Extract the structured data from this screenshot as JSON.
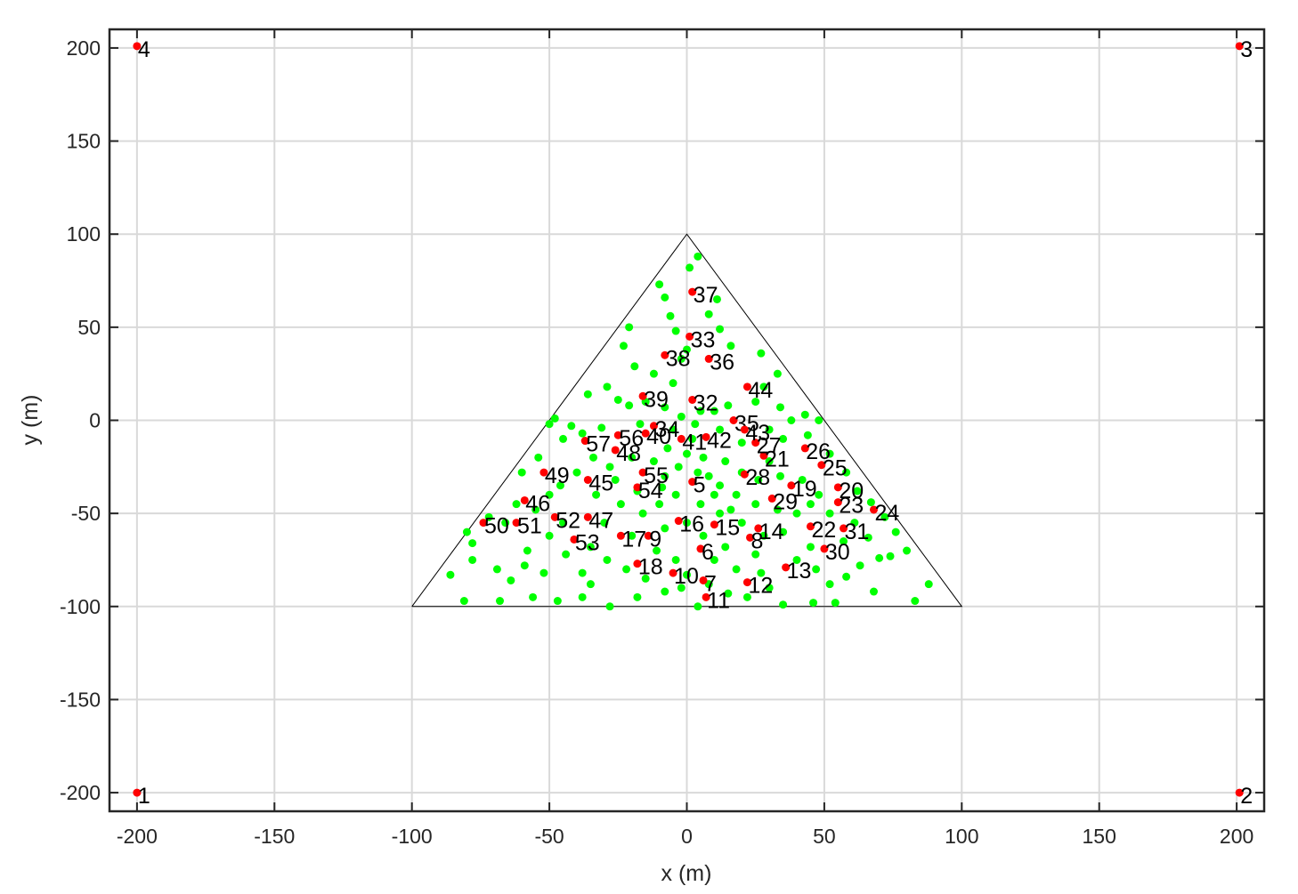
{
  "chart_data": {
    "type": "scatter",
    "xlabel": "x (m)",
    "ylabel": "y (m)",
    "xlim": [
      -210,
      210
    ],
    "ylim": [
      -210,
      210
    ],
    "xticks": [
      -200,
      -150,
      -100,
      -50,
      0,
      50,
      100,
      150,
      200
    ],
    "yticks": [
      -200,
      -150,
      -100,
      -50,
      0,
      50,
      100,
      150,
      200
    ],
    "grid": true,
    "series": [
      {
        "mode": "line",
        "color": "#000000",
        "x": [
          -100,
          100,
          0,
          -100
        ],
        "y": [
          -100,
          -100,
          100,
          -100
        ]
      },
      {
        "mode": "marker",
        "color": "#00ff00",
        "x": [
          4,
          1,
          -10,
          -8,
          11,
          8,
          -21,
          12,
          0,
          -2,
          -23,
          16,
          27,
          33,
          28,
          -19,
          -12,
          -5,
          -29,
          -36,
          -25,
          -21,
          -8,
          -2,
          5,
          10,
          15,
          25,
          34,
          38,
          43,
          48,
          -42,
          -48,
          -50,
          -45,
          -38,
          -31,
          -17,
          -5,
          3,
          12,
          20,
          30,
          35,
          44,
          52,
          58,
          62,
          67,
          72,
          76,
          80,
          88,
          83,
          68,
          54,
          46,
          35,
          22,
          15,
          4,
          -8,
          -18,
          -28,
          -38,
          -47,
          -56,
          -68,
          -81,
          -86,
          -78,
          -69,
          -64,
          -59,
          -52,
          -44,
          -38,
          -35,
          -29,
          -22,
          -11,
          -4,
          0,
          10,
          18,
          27,
          30,
          40,
          47,
          52,
          58,
          63,
          70,
          74,
          66,
          61,
          52,
          45,
          40,
          33,
          25,
          18,
          12,
          8,
          4,
          -3,
          -8,
          -12,
          -7,
          0,
          6,
          14,
          20,
          26,
          34,
          42,
          48,
          -20,
          -28,
          -34,
          -40,
          -46,
          -50,
          -55,
          -62,
          -66,
          -72,
          -78,
          -80,
          -24,
          -16,
          -10,
          -4,
          5,
          12,
          20,
          28,
          35,
          -30,
          -20,
          -8,
          0,
          6,
          14,
          -26,
          -18,
          -9,
          10,
          16,
          -45,
          -58,
          -50,
          -35,
          -15,
          8,
          25,
          -2,
          57,
          45,
          -60,
          -54,
          -33,
          2,
          -15,
          30,
          -6,
          -4
        ],
        "y": [
          88,
          82,
          73,
          66,
          65,
          57,
          50,
          49,
          38,
          33,
          40,
          40,
          36,
          25,
          18,
          29,
          25,
          20,
          18,
          14,
          11,
          8,
          7,
          2,
          5,
          5,
          8,
          10,
          7,
          0,
          3,
          0,
          -3,
          1,
          -2,
          -10,
          -7,
          -4,
          -2,
          -5,
          -2,
          -5,
          -12,
          -5,
          -10,
          -8,
          -18,
          -28,
          -38,
          -44,
          -52,
          -60,
          -70,
          -88,
          -97,
          -92,
          -98,
          -98,
          -99,
          -95,
          -93,
          -100,
          -92,
          -95,
          -100,
          -95,
          -97,
          -95,
          -97,
          -97,
          -83,
          -75,
          -80,
          -86,
          -78,
          -82,
          -72,
          -82,
          -88,
          -75,
          -80,
          -70,
          -75,
          -83,
          -75,
          -80,
          -82,
          -90,
          -75,
          -80,
          -88,
          -84,
          -78,
          -74,
          -73,
          -63,
          -55,
          -50,
          -45,
          -50,
          -48,
          -45,
          -40,
          -35,
          -30,
          -28,
          -25,
          -30,
          -22,
          -15,
          -18,
          -20,
          -22,
          -28,
          -32,
          -30,
          -32,
          -40,
          -20,
          -25,
          -20,
          -28,
          -35,
          -40,
          -48,
          -45,
          -55,
          -52,
          -66,
          -60,
          -45,
          -50,
          -45,
          -40,
          -45,
          -50,
          -55,
          -62,
          -60,
          -55,
          -62,
          -58,
          -55,
          -62,
          -68,
          -32,
          -38,
          -36,
          -40,
          -48,
          -55,
          -70,
          -62,
          -68,
          -85,
          -88,
          -72,
          -90,
          -65,
          -68,
          -28,
          -20,
          -40,
          -10,
          10,
          -22,
          56,
          48
        ]
      },
      {
        "mode": "marker",
        "color": "#ff0000",
        "x": [
          -200,
          201,
          201,
          -200,
          2,
          5,
          6,
          23,
          -14,
          -5,
          7,
          22,
          36,
          26,
          10,
          -3,
          -24,
          -18,
          38,
          55,
          28,
          45,
          55,
          68,
          49,
          43,
          25,
          21,
          31,
          50,
          57,
          2,
          1,
          -12,
          17,
          8,
          2,
          -8,
          -16,
          -15,
          -2,
          7,
          21,
          22,
          -36,
          -59,
          -36,
          -26,
          -52,
          -74,
          -62,
          -48,
          -41,
          -18,
          -16,
          -25,
          -37
        ],
        "y": [
          -200,
          -200,
          201,
          201,
          -33,
          -69,
          -86,
          -63,
          -62,
          -82,
          -95,
          -87,
          -79,
          -58,
          -56,
          -54,
          -62,
          -77,
          -35,
          -36,
          -19,
          -57,
          -44,
          -48,
          -24,
          -15,
          -12,
          -29,
          -42,
          -69,
          -58,
          11,
          45,
          -3,
          0,
          33,
          69,
          35,
          13,
          -7,
          -10,
          -9,
          -5,
          18,
          -32,
          -43,
          -52,
          -16,
          -28,
          -55,
          -55,
          -52,
          -64,
          -36,
          -28,
          -8,
          -11
        ],
        "point_labels": [
          "1",
          "2",
          "3",
          "4",
          "5",
          "6",
          "7",
          "8",
          "9",
          "10",
          "11",
          "12",
          "13",
          "14",
          "15",
          "16",
          "17",
          "18",
          "19",
          "20",
          "21",
          "22",
          "23",
          "24",
          "25",
          "26",
          "27",
          "28",
          "29",
          "30",
          "31",
          "32",
          "33",
          "34",
          "35",
          "36",
          "37",
          "38",
          "39",
          "40",
          "41",
          "42",
          "43",
          "44",
          "45",
          "46",
          "47",
          "48",
          "49",
          "50",
          "51",
          "52",
          "53",
          "54",
          "55",
          "56",
          "57"
        ]
      }
    ]
  }
}
